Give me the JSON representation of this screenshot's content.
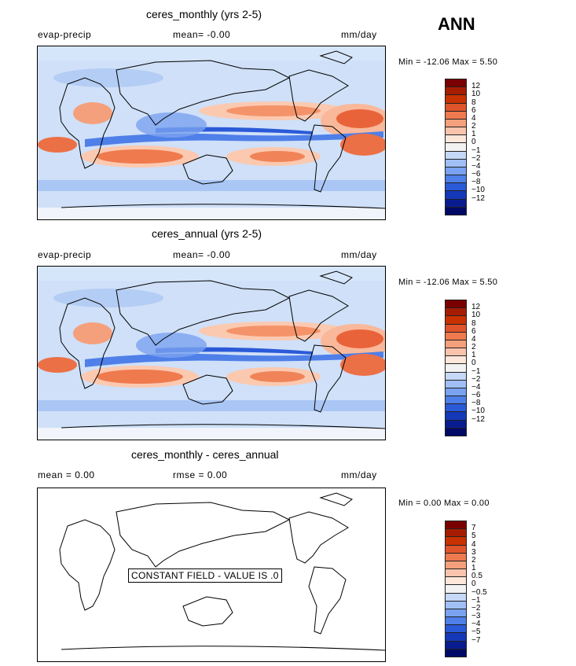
{
  "season": "ANN",
  "panels": [
    {
      "title": "ceres_monthly (yrs 2-5)",
      "left_label": "evap-precip",
      "center_label": "mean=  -0.00",
      "right_label": "mm/day",
      "minmax": "Min = -12.06 Max =   5.50",
      "colorbar": {
        "colors": [
          "#7a0000",
          "#a61c00",
          "#c83200",
          "#e0542c",
          "#f07a50",
          "#f5a07c",
          "#fac4ac",
          "#fde6da",
          "#f2f2f2",
          "#c5d8f7",
          "#a0c0f5",
          "#7aa2f0",
          "#4f7fe8",
          "#2a5ad8",
          "#1438b8",
          "#081c90",
          "#000a66"
        ],
        "labels": [
          "12",
          "10",
          "8",
          "6",
          "4",
          "2",
          "1",
          "0",
          "−1",
          "−2",
          "−4",
          "−6",
          "−8",
          "−10",
          "−12"
        ]
      }
    },
    {
      "title": "ceres_annual (yrs 2-5)",
      "left_label": "evap-precip",
      "center_label": "mean=  -0.00",
      "right_label": "mm/day",
      "minmax": "Min = -12.06 Max =   5.50",
      "colorbar": {
        "colors": [
          "#7a0000",
          "#a61c00",
          "#c83200",
          "#e0542c",
          "#f07a50",
          "#f5a07c",
          "#fac4ac",
          "#fde6da",
          "#f2f2f2",
          "#c5d8f7",
          "#a0c0f5",
          "#7aa2f0",
          "#4f7fe8",
          "#2a5ad8",
          "#1438b8",
          "#081c90",
          "#000a66"
        ],
        "labels": [
          "12",
          "10",
          "8",
          "6",
          "4",
          "2",
          "1",
          "0",
          "−1",
          "−2",
          "−4",
          "−6",
          "−8",
          "−10",
          "−12"
        ]
      }
    },
    {
      "title": "ceres_monthly - ceres_annual",
      "left_label": "mean =    0.00",
      "center_label": "rmse =    0.00",
      "right_label": "mm/day",
      "minmax": "Min =   0.00 Max =   0.00",
      "constant_note": "CONSTANT FIELD - VALUE IS .0",
      "colorbar": {
        "colors": [
          "#7a0000",
          "#a61c00",
          "#c83200",
          "#e0542c",
          "#f07a50",
          "#f5a07c",
          "#fac4ac",
          "#fde6da",
          "#f2f2f2",
          "#c5d8f7",
          "#a0c0f5",
          "#7aa2f0",
          "#4f7fe8",
          "#2a5ad8",
          "#1438b8",
          "#081c90",
          "#000a66"
        ],
        "labels": [
          "7",
          "5",
          "4",
          "3",
          "2",
          "1",
          "0.5",
          "0",
          "−0.5",
          "−1",
          "−2",
          "−3",
          "−4",
          "−5",
          "−7"
        ]
      }
    }
  ],
  "chart_data": [
    {
      "type": "heatmap",
      "title": "ceres_monthly (yrs 2-5)",
      "variable": "evap-precip",
      "units": "mm/day",
      "mean": -0.0,
      "min": -12.06,
      "max": 5.5,
      "contour_levels": [
        -12,
        -10,
        -8,
        -6,
        -4,
        -2,
        -1,
        0,
        1,
        2,
        4,
        6,
        8,
        10,
        12
      ]
    },
    {
      "type": "heatmap",
      "title": "ceres_annual (yrs 2-5)",
      "variable": "evap-precip",
      "units": "mm/day",
      "mean": -0.0,
      "min": -12.06,
      "max": 5.5,
      "contour_levels": [
        -12,
        -10,
        -8,
        -6,
        -4,
        -2,
        -1,
        0,
        1,
        2,
        4,
        6,
        8,
        10,
        12
      ]
    },
    {
      "type": "heatmap",
      "title": "ceres_monthly - ceres_annual",
      "units": "mm/day",
      "mean": 0.0,
      "rmse": 0.0,
      "min": 0.0,
      "max": 0.0,
      "contour_levels": [
        -7,
        -5,
        -4,
        -3,
        -2,
        -1,
        -0.5,
        0,
        0.5,
        1,
        2,
        3,
        4,
        5,
        7
      ]
    }
  ]
}
